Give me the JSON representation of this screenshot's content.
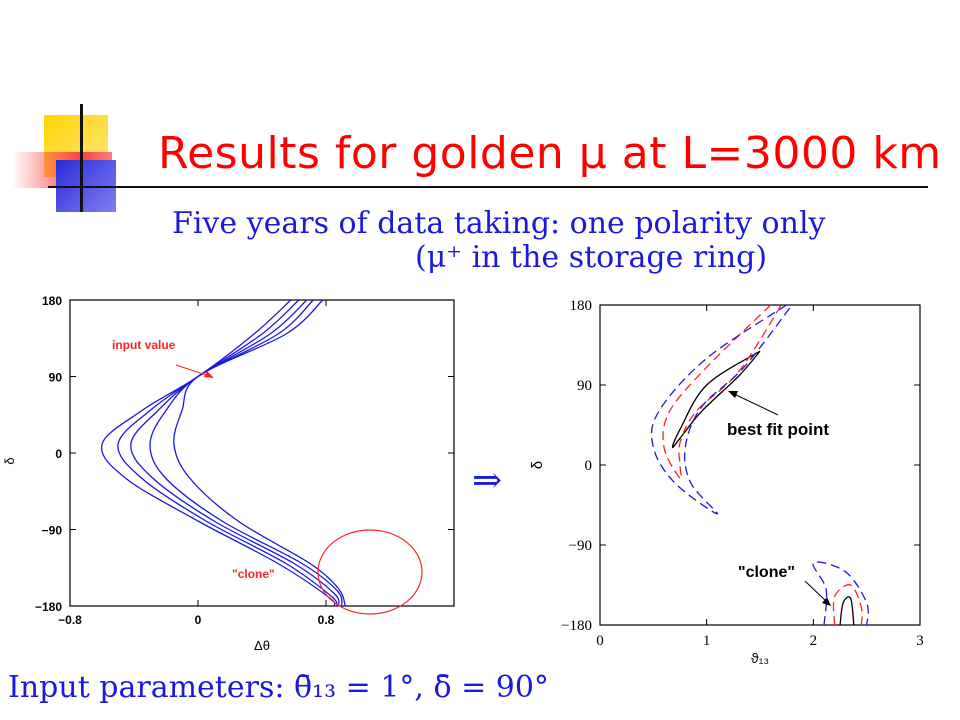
{
  "title": "Results for golden μ at L=3000 km",
  "subtitle_line1": "Five years of data taking: one polarity only",
  "subtitle_line2": "(μ⁺ in the storage ring)",
  "implies_symbol": "⇒",
  "input_parameters": "Input parameters: θ̄₁₃ = 1°, δ̄ = 90°",
  "colors": {
    "title": "#ff0000",
    "text": "#1a1adc",
    "curve": "#1a1adc",
    "annotation": "#ff2222"
  },
  "chart_data": [
    {
      "type": "line",
      "xlabel": "Δθ",
      "ylabel": "δ",
      "xlim": [
        -0.8,
        1.6
      ],
      "ylim": [
        -180,
        180
      ],
      "xticks": [
        "−0.8",
        "0",
        "0.8"
      ],
      "yticks": [
        "180",
        "90",
        "0",
        "−90",
        "−180"
      ],
      "annotations": [
        "input value",
        "\"clone\""
      ],
      "series": [
        {
          "points": [
            [
              0.58,
              180
            ],
            [
              0.35,
              140
            ],
            [
              0.0,
              90
            ],
            [
              -0.35,
              50
            ],
            [
              -0.6,
              10
            ],
            [
              -0.45,
              -30
            ],
            [
              0.0,
              -80
            ],
            [
              0.5,
              -130
            ],
            [
              0.82,
              -170
            ],
            [
              0.85,
              -180
            ]
          ]
        },
        {
          "points": [
            [
              0.63,
              180
            ],
            [
              0.4,
              140
            ],
            [
              0.0,
              90
            ],
            [
              -0.3,
              50
            ],
            [
              -0.5,
              10
            ],
            [
              -0.35,
              -30
            ],
            [
              0.05,
              -80
            ],
            [
              0.55,
              -130
            ],
            [
              0.83,
              -168
            ],
            [
              0.87,
              -180
            ]
          ]
        },
        {
          "points": [
            [
              0.68,
              180
            ],
            [
              0.45,
              140
            ],
            [
              0.0,
              90
            ],
            [
              -0.25,
              50
            ],
            [
              -0.42,
              10
            ],
            [
              -0.28,
              -30
            ],
            [
              0.1,
              -80
            ],
            [
              0.6,
              -130
            ],
            [
              0.85,
              -165
            ],
            [
              0.88,
              -180
            ]
          ]
        },
        {
          "points": [
            [
              0.72,
              180
            ],
            [
              0.5,
              140
            ],
            [
              0.0,
              90
            ],
            [
              -0.2,
              50
            ],
            [
              -0.3,
              10
            ],
            [
              -0.2,
              -30
            ],
            [
              0.15,
              -80
            ],
            [
              0.65,
              -130
            ],
            [
              0.87,
              -162
            ],
            [
              0.9,
              -180
            ]
          ]
        },
        {
          "points": [
            [
              0.78,
              180
            ],
            [
              0.55,
              140
            ],
            [
              0.0,
              90
            ],
            [
              -0.1,
              50
            ],
            [
              -0.15,
              10
            ],
            [
              -0.05,
              -30
            ],
            [
              0.25,
              -80
            ],
            [
              0.7,
              -130
            ],
            [
              0.88,
              -160
            ],
            [
              0.92,
              -180
            ]
          ]
        }
      ]
    },
    {
      "type": "line",
      "xlabel": "ϑ₁₃",
      "ylabel": "δ",
      "xlim": [
        0,
        3
      ],
      "ylim": [
        -180,
        180
      ],
      "xticks": [
        "0",
        "1",
        "2",
        "3"
      ],
      "yticks": [
        "180",
        "90",
        "0",
        "−90",
        "−180"
      ],
      "annotations": [
        "best fit point",
        "\"clone\""
      ],
      "series": [
        {
          "style": "solid",
          "color": "#000000",
          "points": [
            [
              1.5,
              128
            ],
            [
              1.0,
              90
            ],
            [
              0.75,
              40
            ],
            [
              0.68,
              20
            ],
            [
              0.75,
              30
            ],
            [
              0.95,
              60
            ],
            [
              1.3,
              100
            ],
            [
              1.5,
              128
            ]
          ]
        },
        {
          "style": "dashed",
          "color": "#ff2222",
          "points": [
            [
              1.6,
              180
            ],
            [
              1.0,
              110
            ],
            [
              0.65,
              60
            ],
            [
              0.6,
              20
            ],
            [
              0.75,
              -15
            ],
            [
              0.75,
              0
            ],
            [
              0.75,
              25
            ],
            [
              0.9,
              60
            ],
            [
              1.3,
              105
            ],
            [
              1.7,
              180
            ]
          ]
        },
        {
          "style": "dashed",
          "color": "#1a1adc",
          "points": [
            [
              1.75,
              180
            ],
            [
              1.0,
              120
            ],
            [
              0.55,
              60
            ],
            [
              0.5,
              20
            ],
            [
              0.7,
              -20
            ],
            [
              1.1,
              -55
            ],
            [
              0.85,
              -20
            ],
            [
              0.8,
              20
            ],
            [
              0.95,
              65
            ],
            [
              1.35,
              110
            ],
            [
              1.8,
              180
            ]
          ]
        },
        {
          "style": "solid",
          "color": "#000000",
          "points": [
            [
              2.25,
              -180
            ],
            [
              2.28,
              -155
            ],
            [
              2.35,
              -150
            ],
            [
              2.38,
              -180
            ]
          ]
        },
        {
          "style": "dashed",
          "color": "#ff2222",
          "points": [
            [
              2.2,
              -180
            ],
            [
              2.2,
              -148
            ],
            [
              2.35,
              -135
            ],
            [
              2.45,
              -160
            ],
            [
              2.45,
              -180
            ]
          ]
        },
        {
          "style": "dashed",
          "color": "#1a1adc",
          "points": [
            [
              2.1,
              -180
            ],
            [
              2.12,
              -140
            ],
            [
              2.0,
              -110
            ],
            [
              2.3,
              -120
            ],
            [
              2.5,
              -155
            ],
            [
              2.5,
              -180
            ]
          ]
        }
      ]
    }
  ]
}
